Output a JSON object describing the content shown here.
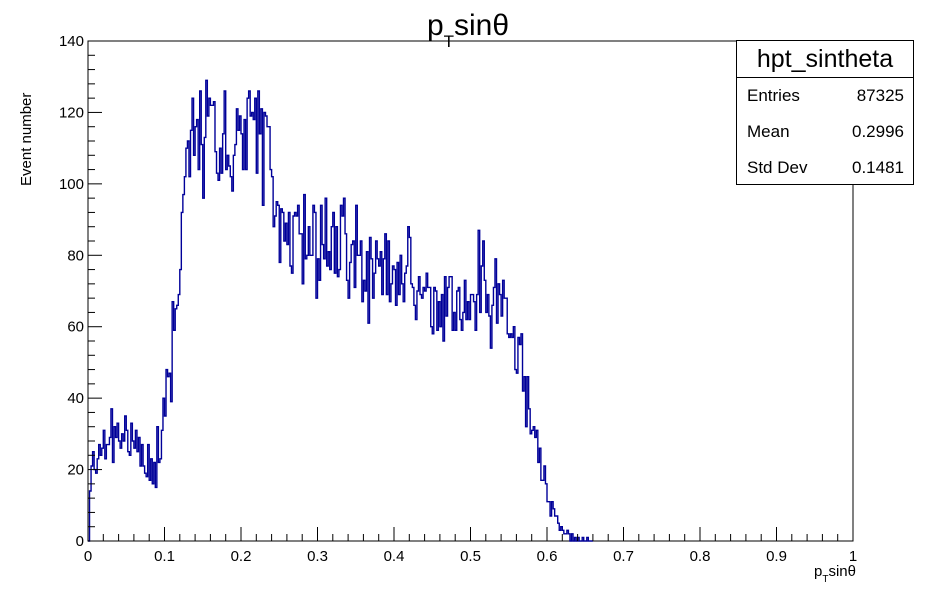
{
  "chart_data": {
    "type": "histogram",
    "title_main": "p",
    "title_sub": "T",
    "title_tail": "sinθ",
    "xlabel_main": "p",
    "xlabel_sub": "T",
    "xlabel_tail": "sinθ",
    "ylabel": "Event number",
    "xlim": [
      0,
      1
    ],
    "ylim": [
      0,
      140
    ],
    "xticks": [
      "0",
      "0.1",
      "0.2",
      "0.3",
      "0.4",
      "0.5",
      "0.6",
      "0.7",
      "0.8",
      "0.9",
      "1"
    ],
    "yticks": [
      "0",
      "20",
      "40",
      "60",
      "80",
      "100",
      "120",
      "140"
    ],
    "line_color": "#000099",
    "bin_width": 0.002,
    "x_start": 0.0,
    "values": [
      0,
      14,
      21,
      25,
      20,
      19,
      23,
      27,
      24,
      26,
      31,
      23,
      27,
      27,
      29,
      37,
      22,
      32,
      29,
      33,
      28,
      26,
      30,
      28,
      35,
      31,
      25,
      24,
      33,
      28,
      26,
      31,
      25,
      29,
      21,
      27,
      21,
      19,
      18,
      27,
      17,
      23,
      16,
      22,
      15,
      32,
      22,
      23,
      31,
      40,
      35,
      48,
      46,
      47,
      39,
      67,
      59,
      65,
      66,
      69,
      76,
      92,
      97,
      102,
      110,
      112,
      102,
      115,
      124,
      108,
      116,
      118,
      104,
      126,
      111,
      96,
      113,
      129,
      119,
      124,
      122,
      122,
      123,
      109,
      103,
      101,
      110,
      103,
      114,
      126,
      104,
      108,
      105,
      102,
      98,
      108,
      111,
      121,
      115,
      119,
      114,
      104,
      118,
      104,
      124,
      126,
      119,
      120,
      118,
      124,
      103,
      126,
      114,
      121,
      94,
      120,
      119,
      116,
      116,
      104,
      102,
      88,
      91,
      95,
      94,
      78,
      93,
      92,
      84,
      89,
      83,
      92,
      77,
      75,
      91,
      92,
      91,
      94,
      86,
      86,
      72,
      97,
      79,
      80,
      88,
      80,
      80,
      94,
      92,
      68,
      79,
      73,
      94,
      83,
      79,
      96,
      77,
      81,
      76,
      88,
      92,
      75,
      88,
      74,
      76,
      94,
      91,
      96,
      86,
      73,
      68,
      78,
      83,
      84,
      71,
      94,
      80,
      80,
      84,
      67,
      73,
      70,
      81,
      61,
      85,
      79,
      68,
      75,
      84,
      79,
      77,
      81,
      69,
      79,
      86,
      69,
      84,
      67,
      72,
      77,
      76,
      66,
      78,
      69,
      80,
      72,
      67,
      75,
      77,
      88,
      85,
      72,
      71,
      66,
      62,
      70,
      74,
      69,
      68,
      71,
      70,
      75,
      71,
      71,
      60,
      58,
      71,
      70,
      59,
      67,
      60,
      69,
      56,
      74,
      63,
      71,
      74,
      74,
      59,
      64,
      59,
      70,
      71,
      62,
      59,
      64,
      73,
      62,
      67,
      62,
      69,
      69,
      67,
      59,
      69,
      87,
      64,
      77,
      84,
      73,
      64,
      69,
      63,
      54,
      66,
      71,
      79,
      61,
      72,
      69,
      63,
      73,
      68,
      68,
      58,
      57,
      58,
      57,
      60,
      48,
      47,
      57,
      55,
      58,
      42,
      46,
      32,
      46,
      37,
      30,
      31,
      32,
      29,
      31,
      22,
      26,
      17,
      17,
      21,
      16,
      11,
      11,
      7,
      11,
      9,
      7,
      7,
      5,
      3,
      4,
      3,
      2,
      2,
      3,
      2,
      0,
      2,
      0,
      1,
      0,
      1,
      0,
      0,
      1,
      0,
      0,
      1,
      0,
      0,
      0
    ]
  },
  "stats": {
    "name": "hpt_sintheta",
    "rows": [
      {
        "label": "Entries",
        "value": "87325"
      },
      {
        "label": "Mean",
        "value": "0.2996"
      },
      {
        "label": "Std Dev",
        "value": "0.1481"
      }
    ]
  }
}
